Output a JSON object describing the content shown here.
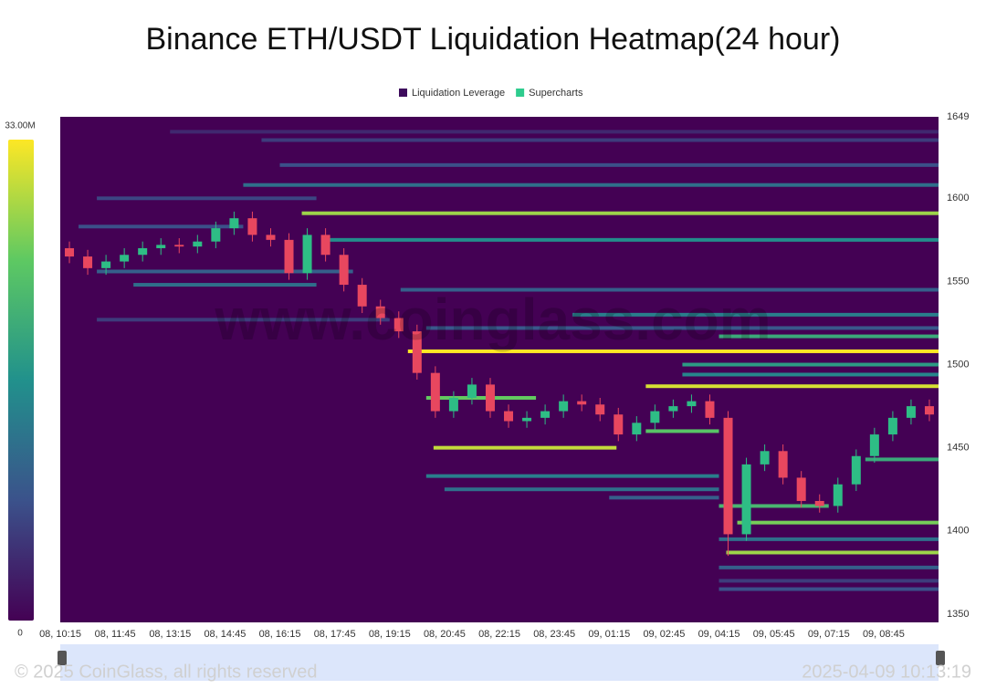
{
  "chart_data": {
    "type": "liquidation-heatmap",
    "title": "Binance ETH/USDT Liquidation Heatmap(24 hour)",
    "watermark": "www.coinglass.com",
    "footer_left": "© 2025 CoinGlass, all rights reserved",
    "footer_right": "2025-04-09 10:13:19",
    "xlim": [
      0,
      24
    ],
    "xticks": [
      {
        "value": 0,
        "label": "08, 10:15"
      },
      {
        "value": 1.5,
        "label": "08, 11:45"
      },
      {
        "value": 3,
        "label": "08, 13:15"
      },
      {
        "value": 4.5,
        "label": "08, 14:45"
      },
      {
        "value": 6,
        "label": "08, 16:15"
      },
      {
        "value": 7.5,
        "label": "08, 17:45"
      },
      {
        "value": 9,
        "label": "08, 19:15"
      },
      {
        "value": 10.5,
        "label": "08, 20:45"
      },
      {
        "value": 12,
        "label": "08, 22:15"
      },
      {
        "value": 13.5,
        "label": "08, 23:45"
      },
      {
        "value": 15,
        "label": "09, 01:15"
      },
      {
        "value": 16.5,
        "label": "09, 02:45"
      },
      {
        "value": 18,
        "label": "09, 04:15"
      },
      {
        "value": 19.5,
        "label": "09, 05:45"
      },
      {
        "value": 21,
        "label": "09, 07:15"
      },
      {
        "value": 22.5,
        "label": "09, 08:45"
      }
    ],
    "ylim": [
      1345,
      1649
    ],
    "yticks": [
      1350,
      1400,
      1450,
      1500,
      1550,
      1600,
      1649
    ],
    "colorbar": {
      "lim": [
        0,
        33000000
      ],
      "ticks": [
        0,
        {
          "value": 33000000,
          "label": "33.00M"
        }
      ],
      "colors": [
        "#440154",
        "#3b528b",
        "#21918c",
        "#5ec962",
        "#fde725"
      ]
    },
    "series": [
      {
        "name": "Liquidation Leverage",
        "color": "#3d0b5c",
        "bands": [
          {
            "price": 1640,
            "start": 3,
            "end": 24,
            "value": 4000000
          },
          {
            "price": 1635,
            "start": 5.5,
            "end": 24,
            "value": 6000000
          },
          {
            "price": 1620,
            "start": 6,
            "end": 24,
            "value": 8000000
          },
          {
            "price": 1608,
            "start": 5,
            "end": 24,
            "value": 12000000
          },
          {
            "price": 1600,
            "start": 1,
            "end": 7,
            "value": 7000000
          },
          {
            "price": 1591,
            "start": 6.6,
            "end": 24,
            "value": 28000000
          },
          {
            "price": 1583,
            "start": 0.5,
            "end": 5,
            "value": 8000000
          },
          {
            "price": 1575,
            "start": 7.2,
            "end": 24,
            "value": 16000000
          },
          {
            "price": 1556,
            "start": 1,
            "end": 8,
            "value": 10000000
          },
          {
            "price": 1548,
            "start": 2,
            "end": 7,
            "value": 12000000
          },
          {
            "price": 1545,
            "start": 9.3,
            "end": 24,
            "value": 10000000
          },
          {
            "price": 1530,
            "start": 14,
            "end": 24,
            "value": 14000000
          },
          {
            "price": 1527,
            "start": 1,
            "end": 9,
            "value": 6000000
          },
          {
            "price": 1522,
            "start": 10,
            "end": 24,
            "value": 9000000
          },
          {
            "price": 1517,
            "start": 18,
            "end": 24,
            "value": 20000000
          },
          {
            "price": 1508,
            "start": 9.5,
            "end": 24,
            "value": 33000000
          },
          {
            "price": 1500,
            "start": 17,
            "end": 24,
            "value": 18000000
          },
          {
            "price": 1494,
            "start": 17,
            "end": 24,
            "value": 15000000
          },
          {
            "price": 1487,
            "start": 16,
            "end": 24,
            "value": 31000000
          },
          {
            "price": 1480,
            "start": 10,
            "end": 13,
            "value": 25000000
          },
          {
            "price": 1460,
            "start": 16,
            "end": 18,
            "value": 24000000
          },
          {
            "price": 1450,
            "start": 10.2,
            "end": 15.2,
            "value": 30000000
          },
          {
            "price": 1443,
            "start": 22,
            "end": 24,
            "value": 20000000
          },
          {
            "price": 1433,
            "start": 10,
            "end": 18,
            "value": 14000000
          },
          {
            "price": 1425,
            "start": 10.5,
            "end": 18,
            "value": 12000000
          },
          {
            "price": 1420,
            "start": 15,
            "end": 18,
            "value": 10000000
          },
          {
            "price": 1415,
            "start": 18,
            "end": 21,
            "value": 22000000
          },
          {
            "price": 1405,
            "start": 18.5,
            "end": 24,
            "value": 26000000
          },
          {
            "price": 1395,
            "start": 18,
            "end": 24,
            "value": 12000000
          },
          {
            "price": 1387,
            "start": 18.2,
            "end": 24,
            "value": 28000000
          },
          {
            "price": 1378,
            "start": 18,
            "end": 24,
            "value": 10000000
          },
          {
            "price": 1370,
            "start": 18,
            "end": 24,
            "value": 6000000
          },
          {
            "price": 1365,
            "start": 18,
            "end": 24,
            "value": 8000000
          }
        ]
      },
      {
        "name": "Supercharts",
        "color": "#2ecc8e",
        "up_color": "#2ebd85",
        "down_color": "#e8475f",
        "x": [
          0.25,
          0.75,
          1.25,
          1.75,
          2.25,
          2.75,
          3.25,
          3.75,
          4.25,
          4.75,
          5.25,
          5.75,
          6.25,
          6.75,
          7.25,
          7.75,
          8.25,
          8.75,
          9.25,
          9.75,
          10.25,
          10.75,
          11.25,
          11.75,
          12.25,
          12.75,
          13.25,
          13.75,
          14.25,
          14.75,
          15.25,
          15.75,
          16.25,
          16.75,
          17.25,
          17.75,
          18.25,
          18.75,
          19.25,
          19.75,
          20.25,
          20.75,
          21.25,
          21.75,
          22.25,
          22.75,
          23.25,
          23.75
        ],
        "open": [
          1570,
          1565,
          1558,
          1562,
          1566,
          1570,
          1572,
          1571,
          1574,
          1582,
          1588,
          1578,
          1575,
          1555,
          1578,
          1566,
          1548,
          1535,
          1528,
          1520,
          1495,
          1472,
          1480,
          1488,
          1472,
          1466,
          1468,
          1472,
          1478,
          1476,
          1470,
          1458,
          1465,
          1472,
          1475,
          1478,
          1468,
          1398,
          1440,
          1448,
          1432,
          1418,
          1415,
          1428,
          1445,
          1458,
          1468,
          1475
        ],
        "high": [
          1574,
          1569,
          1566,
          1570,
          1574,
          1576,
          1576,
          1578,
          1586,
          1592,
          1592,
          1582,
          1579,
          1582,
          1582,
          1570,
          1552,
          1539,
          1532,
          1524,
          1499,
          1484,
          1492,
          1492,
          1476,
          1472,
          1476,
          1482,
          1482,
          1480,
          1474,
          1469,
          1476,
          1479,
          1482,
          1482,
          1472,
          1444,
          1452,
          1452,
          1436,
          1422,
          1432,
          1449,
          1462,
          1472,
          1479,
          1479
        ],
        "low": [
          1561,
          1554,
          1554,
          1558,
          1562,
          1566,
          1567,
          1567,
          1570,
          1578,
          1574,
          1571,
          1551,
          1551,
          1562,
          1544,
          1531,
          1524,
          1516,
          1491,
          1468,
          1468,
          1476,
          1468,
          1462,
          1462,
          1464,
          1468,
          1472,
          1466,
          1454,
          1454,
          1461,
          1468,
          1471,
          1464,
          1385,
          1394,
          1436,
          1428,
          1414,
          1411,
          1411,
          1424,
          1441,
          1454,
          1464,
          1466
        ],
        "close": [
          1565,
          1558,
          1562,
          1566,
          1570,
          1572,
          1571,
          1574,
          1582,
          1588,
          1578,
          1575,
          1555,
          1578,
          1566,
          1548,
          1535,
          1528,
          1520,
          1495,
          1472,
          1480,
          1488,
          1472,
          1466,
          1468,
          1472,
          1478,
          1476,
          1470,
          1458,
          1465,
          1472,
          1475,
          1478,
          1468,
          1398,
          1440,
          1448,
          1432,
          1418,
          1415,
          1428,
          1445,
          1458,
          1468,
          1475,
          1470
        ]
      }
    ]
  }
}
